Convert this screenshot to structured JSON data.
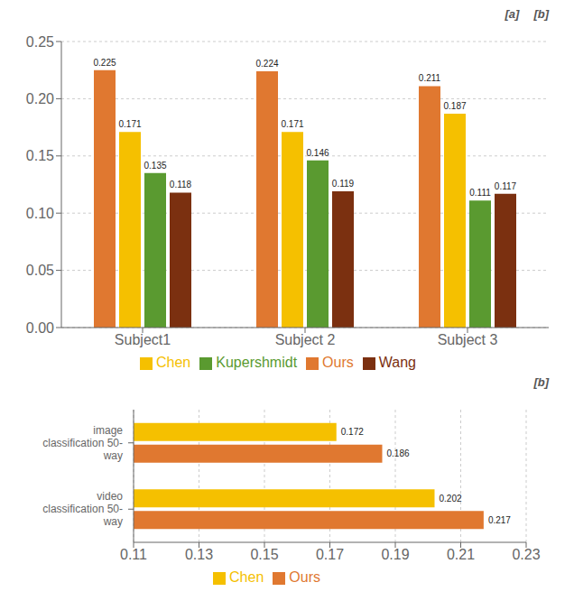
{
  "chart_data": [
    {
      "type": "bar",
      "categories": [
        "Subject1",
        "Subject 2",
        "Subject 3"
      ],
      "series": [
        {
          "name": "Ours",
          "color": "#E07830",
          "values": [
            0.225,
            0.224,
            0.211
          ]
        },
        {
          "name": "Chen",
          "color": "#F5C000",
          "values": [
            0.171,
            0.171,
            0.187
          ]
        },
        {
          "name": "Kupershmidt",
          "color": "#5A9A30",
          "values": [
            0.135,
            0.146,
            0.111
          ]
        },
        {
          "name": "Wang",
          "color": "#7B3010",
          "values": [
            0.118,
            0.119,
            0.117
          ]
        }
      ],
      "ylim": [
        0,
        0.25
      ],
      "yticks": [
        {
          "value": 0,
          "label": "0.00"
        },
        {
          "value": 0.05,
          "label": "0.05"
        },
        {
          "value": 0.1,
          "label": "0.10"
        },
        {
          "value": 0.15,
          "label": "0.15"
        },
        {
          "value": 0.2,
          "label": "0.20"
        },
        {
          "value": 0.25,
          "label": "0.25"
        }
      ],
      "annotations": [
        "[a]",
        "[b]"
      ],
      "data_labels": true,
      "grid": true,
      "legend": "bottom"
    },
    {
      "type": "bar",
      "orientation": "horizontal",
      "categories": [
        "image\nclassification 50-\nway",
        "video\nclassification 50-\nway"
      ],
      "series": [
        {
          "name": "Chen",
          "color": "#F5C000",
          "values": [
            0.172,
            0.202
          ]
        },
        {
          "name": "Ours",
          "color": "#E07830",
          "values": [
            0.186,
            0.217
          ]
        }
      ],
      "xlim": [
        0.11,
        0.23
      ],
      "xticks": [
        0.11,
        0.13,
        0.15,
        0.17,
        0.19,
        0.21,
        0.23
      ],
      "annotations": [
        "[b]"
      ],
      "data_labels": true,
      "grid": true,
      "legend": "bottom"
    }
  ]
}
